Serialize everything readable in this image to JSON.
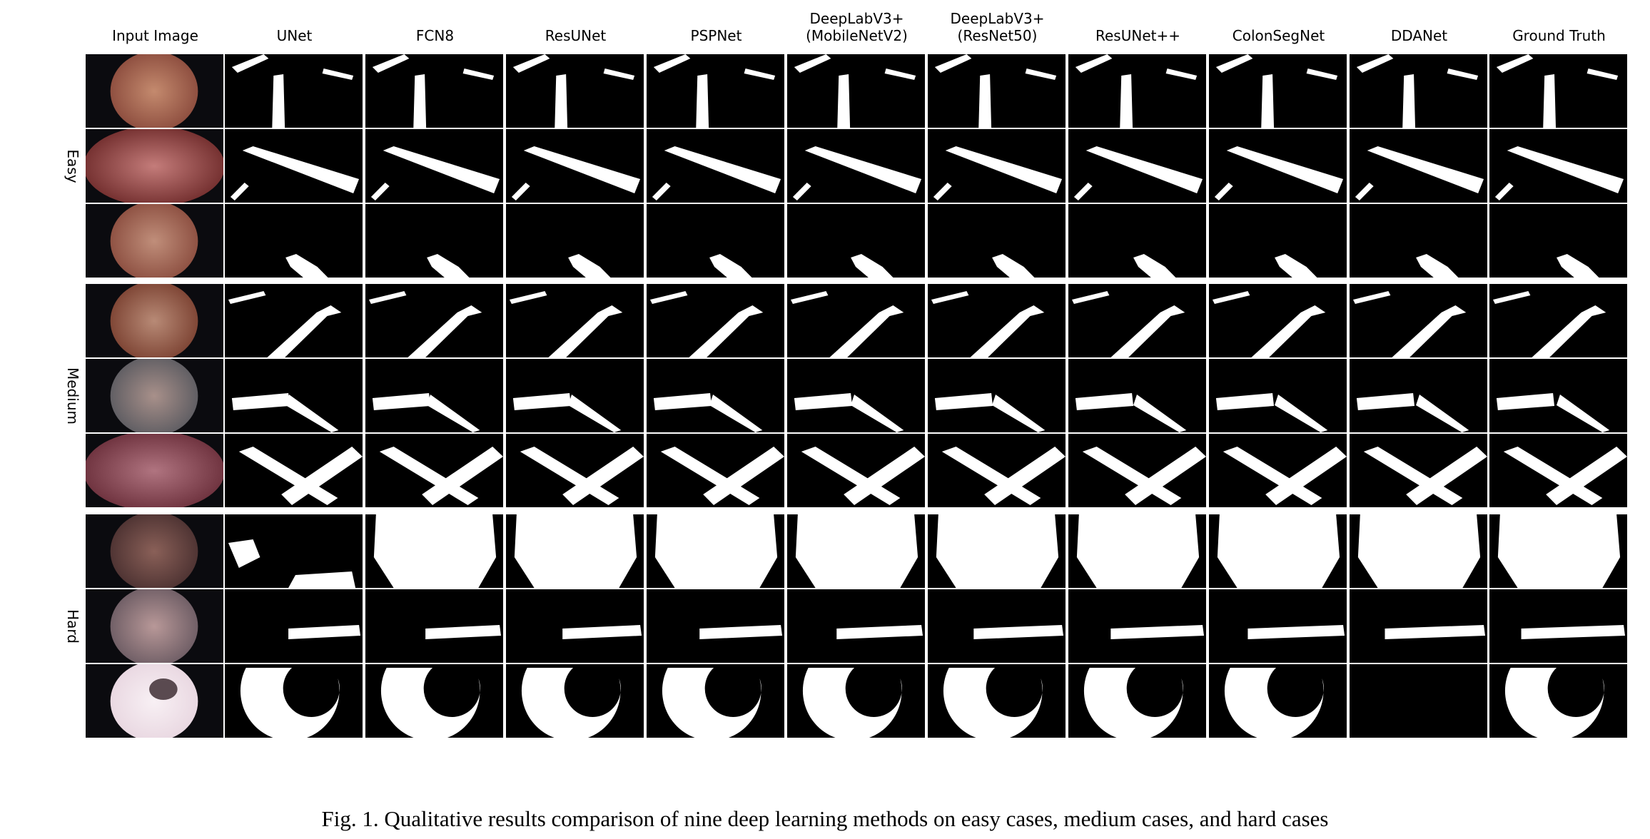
{
  "figure": {
    "columns": [
      "Input Image",
      "UNet",
      "FCN8",
      "ResUNet",
      "PSPNet",
      "DeepLabV3+\n(MobileNetV2)",
      "DeepLabV3+\n(ResNet50)",
      "ResUNet++",
      "ColonSegNet",
      "DDANet",
      "Ground Truth"
    ],
    "groups": [
      {
        "label": "Easy"
      },
      {
        "label": "Medium"
      },
      {
        "label": "Hard"
      }
    ],
    "caption": "Fig. 1.  Qualitative results comparison of nine deep learning methods on easy cases, medium cases, and hard cases"
  }
}
